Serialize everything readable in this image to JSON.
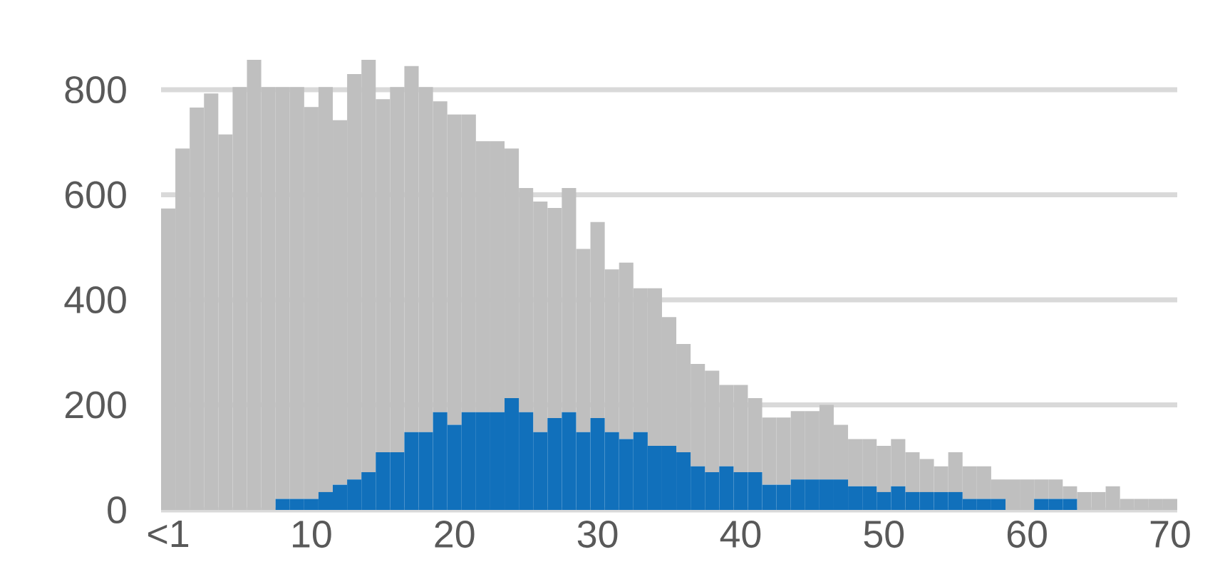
{
  "chart_data": {
    "type": "bar",
    "categories": [
      "<1",
      null,
      null,
      null,
      null,
      null,
      null,
      null,
      null,
      null,
      "10",
      null,
      null,
      null,
      null,
      null,
      null,
      null,
      null,
      null,
      "20",
      null,
      null,
      null,
      null,
      null,
      null,
      null,
      null,
      null,
      "30",
      null,
      null,
      null,
      null,
      null,
      null,
      null,
      null,
      null,
      "40",
      null,
      null,
      null,
      null,
      null,
      null,
      null,
      null,
      null,
      "50",
      null,
      null,
      null,
      null,
      null,
      null,
      null,
      null,
      null,
      "60",
      null,
      null,
      null,
      null,
      null,
      null,
      null,
      null,
      null,
      "70"
    ],
    "series": [
      {
        "color": "#1170bb",
        "values": [
          0,
          0,
          0,
          0,
          0,
          0,
          0,
          0,
          21,
          21,
          21,
          34,
          48,
          58,
          72,
          110,
          110,
          148,
          148,
          186,
          162,
          186,
          186,
          186,
          213,
          186,
          148,
          175,
          186,
          148,
          175,
          148,
          135,
          148,
          122,
          122,
          110,
          83,
          72,
          83,
          72,
          72,
          48,
          48,
          58,
          58,
          58,
          58,
          45,
          45,
          34,
          45,
          34,
          34,
          34,
          34,
          21,
          21,
          21,
          0,
          0,
          21,
          21,
          21,
          0,
          0,
          0,
          0,
          0,
          0,
          0
        ]
      },
      {
        "color": "#bfbfbf",
        "values": [
          574,
          688,
          766,
          793,
          715,
          805,
          857,
          805,
          784,
          784,
          746,
          771,
          694,
          772,
          785,
          672,
          695,
          697,
          657,
          592,
          591,
          567,
          516,
          516,
          475,
          427,
          439,
          400,
          427,
          349,
          373,
          310,
          336,
          274,
          300,
          245,
          206,
          195,
          193,
          155,
          166,
          141,
          128,
          128,
          130,
          130,
          142,
          104,
          90,
          90,
          88,
          90,
          76,
          63,
          49,
          76,
          62,
          62,
          37,
          58,
          58,
          37,
          37,
          24,
          34,
          34,
          45,
          21,
          21,
          21,
          21
        ]
      }
    ],
    "stacked": true,
    "ylim": [
      0,
      857
    ],
    "yticks": [
      0,
      200,
      400,
      600,
      800
    ],
    "grid": "y"
  }
}
